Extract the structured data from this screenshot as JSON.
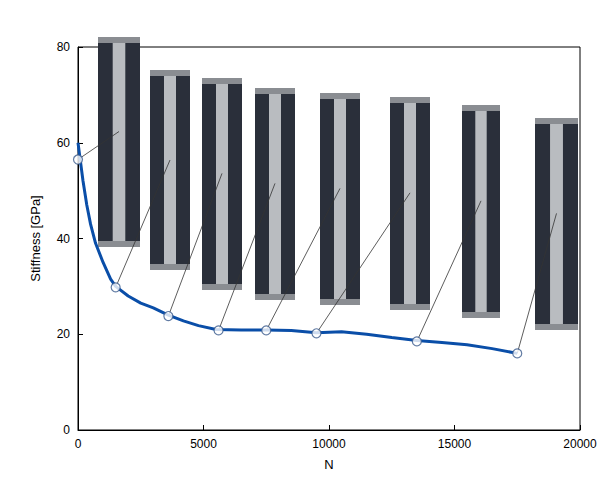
{
  "chart_data": {
    "type": "line",
    "x_label": "N",
    "y_label": "Stiffness [GPa]",
    "xlim": [
      0,
      20000
    ],
    "xticks": [
      0,
      5000,
      10000,
      15000,
      20000
    ],
    "ylim": [
      0,
      80
    ],
    "yticks": [
      0,
      20,
      40,
      60,
      80
    ],
    "grid": false,
    "series": [
      {
        "type": "line",
        "color": "#0a4ea8",
        "line_style": "solid",
        "x": [
          0,
          100,
          200,
          350,
          500,
          700,
          1000,
          1300,
          1500,
          2000,
          2500,
          3000,
          3600,
          4200,
          4800,
          5500,
          6500,
          7500,
          8500,
          9500,
          10500,
          11500,
          12500,
          13500,
          14500,
          15500,
          16500,
          17500
        ],
        "values": [
          60,
          56,
          52,
          47,
          43,
          39,
          35,
          31.5,
          30,
          28,
          26.5,
          25.5,
          24,
          22.8,
          21.8,
          21,
          20.9,
          20.9,
          20.8,
          20.3,
          20.5,
          20,
          19.3,
          18.7,
          18.3,
          17.8,
          17,
          16
        ]
      },
      {
        "type": "scatter",
        "color": "#3a5a8c",
        "marker": "circle",
        "x": [
          0,
          1500,
          3600,
          5600,
          7500,
          9500,
          13500,
          17500
        ],
        "values": [
          56.5,
          29.8,
          23.8,
          20.8,
          20.8,
          20.2,
          18.5,
          16
        ]
      }
    ]
  }
}
